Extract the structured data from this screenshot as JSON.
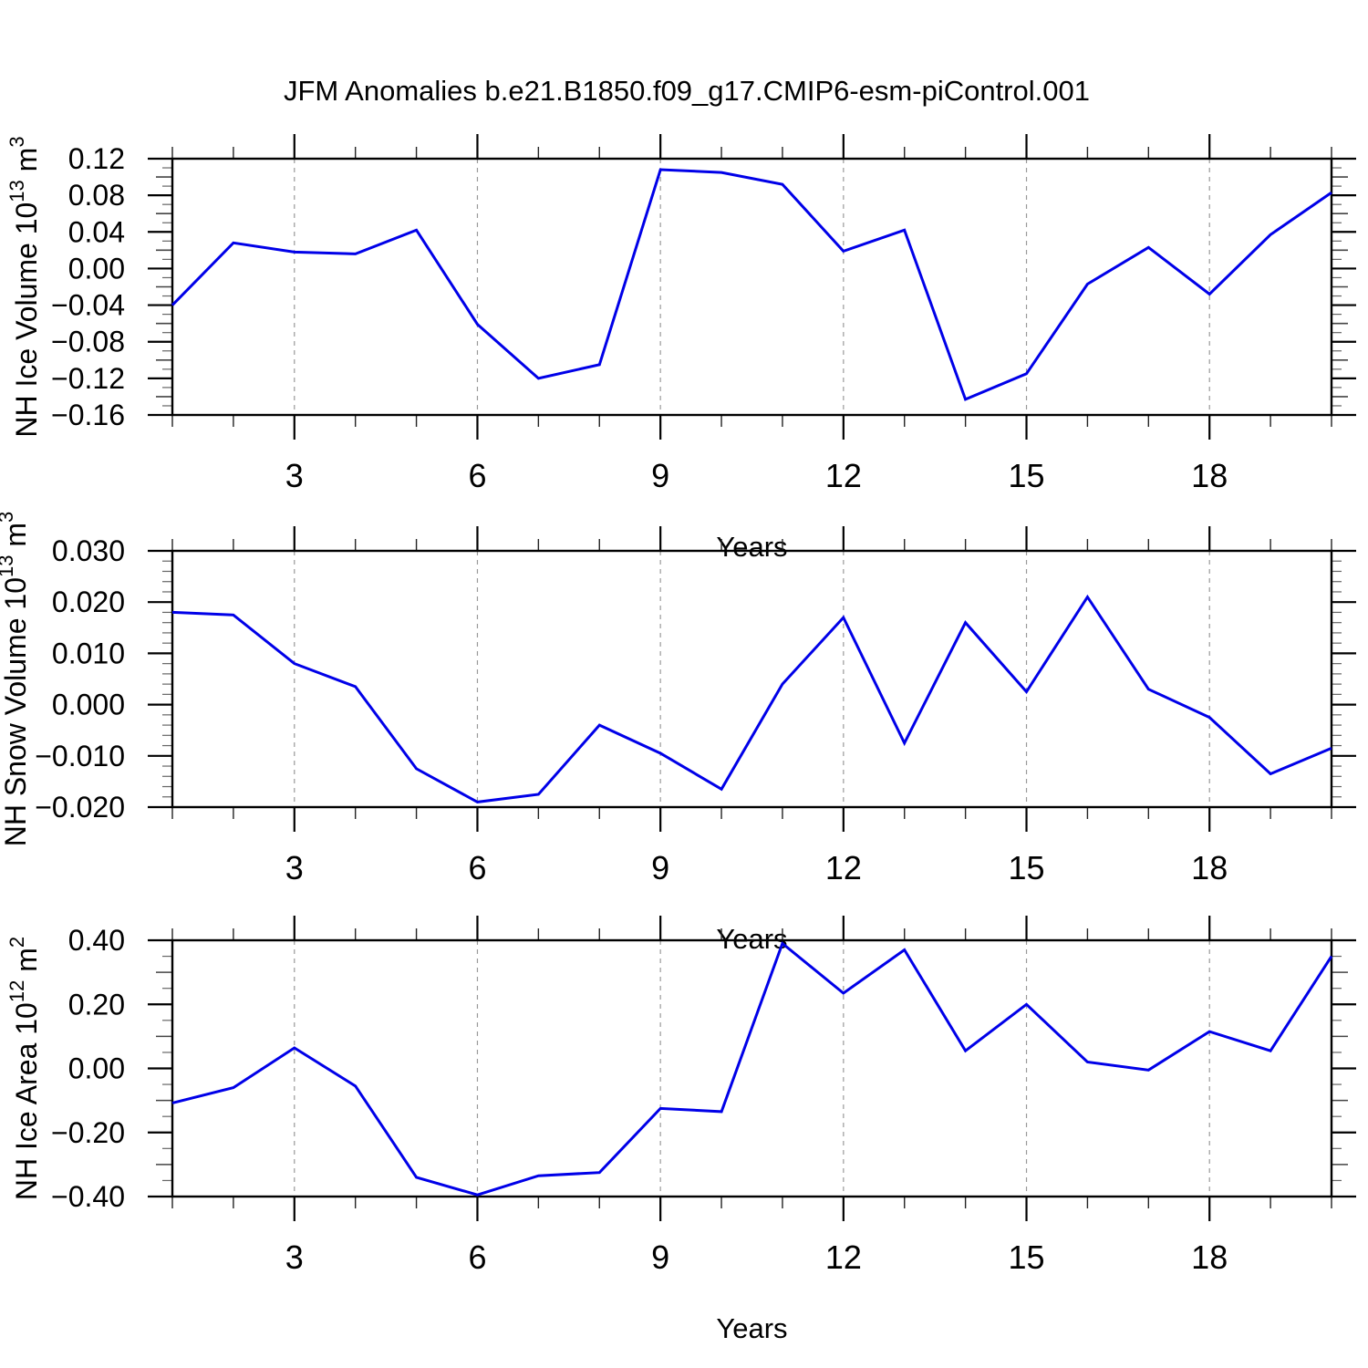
{
  "title": "JFM Anomalies b.e21.B1850.f09_g17.CMIP6-esm-piControl.001",
  "colors": {
    "line": "#0000e8",
    "axis": "#000000",
    "grid": "#999999",
    "mid_tick": "#444444",
    "minor_tick": "#666666",
    "text": "#000000",
    "background": "#ffffff"
  },
  "x_axis": {
    "label": "Years",
    "range": [
      1,
      20
    ],
    "major_ticks": [
      3,
      6,
      9,
      12,
      15,
      18
    ],
    "major_tick_labels": [
      "3",
      "6",
      "9",
      "12",
      "15",
      "18"
    ],
    "minor_step": 1
  },
  "chart_data": [
    {
      "type": "line",
      "id": "nh-ice-volume",
      "ylabel": "NH Ice Volume 10¹³ m³",
      "ylabel_parts": [
        {
          "t": "NH Ice Volume 10"
        },
        {
          "t": "13",
          "sup": true
        },
        {
          "t": " m"
        },
        {
          "t": "3",
          "sup": true
        }
      ],
      "xlabel": "Years",
      "ylim": [
        -0.16,
        0.12
      ],
      "y_major_ticks": [
        0.12,
        0.08,
        0.04,
        0.0,
        -0.04,
        -0.08,
        -0.12,
        -0.16
      ],
      "y_major_tick_labels": [
        "0.12",
        "0.08",
        "0.04",
        "0.00",
        "−0.04",
        "−0.08",
        "−0.12",
        "−0.16"
      ],
      "y_mid_step": 0.02,
      "y_minor_step": 0.01,
      "grid": "vertical-dashed-at-x-majors",
      "x": [
        1,
        2,
        3,
        4,
        5,
        6,
        7,
        8,
        9,
        10,
        11,
        12,
        13,
        14,
        15,
        16,
        17,
        18,
        19,
        20
      ],
      "values": [
        -0.04,
        0.028,
        0.018,
        0.016,
        0.042,
        -0.061,
        -0.12,
        -0.105,
        0.108,
        0.105,
        0.092,
        0.019,
        0.042,
        -0.143,
        -0.115,
        -0.017,
        0.023,
        -0.028,
        0.037,
        0.083
      ]
    },
    {
      "type": "line",
      "id": "nh-snow-volume",
      "ylabel": "NH Snow Volume 10¹³ m³",
      "ylabel_parts": [
        {
          "t": "NH Snow Volume 10"
        },
        {
          "t": "13",
          "sup": true
        },
        {
          "t": " m"
        },
        {
          "t": "3",
          "sup": true
        }
      ],
      "xlabel": "Years",
      "ylim": [
        -0.02,
        0.03
      ],
      "y_major_ticks": [
        0.03,
        0.02,
        0.01,
        0.0,
        -0.01,
        -0.02
      ],
      "y_major_tick_labels": [
        "0.030",
        "0.020",
        "0.010",
        "0.000",
        "−0.010",
        "−0.020"
      ],
      "y_mid_step": 0.005,
      "y_minor_step": 0.002,
      "grid": "vertical-dashed-at-x-majors",
      "x": [
        1,
        2,
        3,
        4,
        5,
        6,
        7,
        8,
        9,
        10,
        11,
        12,
        13,
        14,
        15,
        16,
        17,
        18,
        19,
        20
      ],
      "values": [
        0.018,
        0.0175,
        0.008,
        0.0035,
        -0.0125,
        -0.019,
        -0.0175,
        -0.004,
        -0.0095,
        -0.0165,
        0.004,
        0.017,
        -0.0075,
        0.016,
        0.0025,
        0.021,
        0.003,
        -0.0025,
        -0.0135,
        -0.0085
      ]
    },
    {
      "type": "line",
      "id": "nh-ice-area",
      "ylabel": "NH Ice Area 10¹² m²",
      "ylabel_parts": [
        {
          "t": "NH Ice Area 10"
        },
        {
          "t": "12",
          "sup": true
        },
        {
          "t": " m"
        },
        {
          "t": "2",
          "sup": true
        }
      ],
      "xlabel": "Years",
      "ylim": [
        -0.4,
        0.4
      ],
      "y_major_ticks": [
        0.4,
        0.2,
        0.0,
        -0.2,
        -0.4
      ],
      "y_major_tick_labels": [
        "0.40",
        "0.20",
        "0.00",
        "−0.20",
        "−0.40"
      ],
      "y_mid_step": 0.1,
      "y_minor_step": 0.05,
      "grid": "vertical-dashed-at-x-majors",
      "x": [
        1,
        2,
        3,
        4,
        5,
        6,
        7,
        8,
        9,
        10,
        11,
        12,
        13,
        14,
        15,
        16,
        17,
        18,
        19,
        20
      ],
      "values": [
        -0.108,
        -0.06,
        0.064,
        -0.055,
        -0.34,
        -0.395,
        -0.335,
        -0.325,
        -0.125,
        -0.135,
        0.39,
        0.235,
        0.37,
        0.055,
        0.2,
        0.02,
        -0.005,
        0.115,
        0.055,
        0.35
      ]
    }
  ]
}
